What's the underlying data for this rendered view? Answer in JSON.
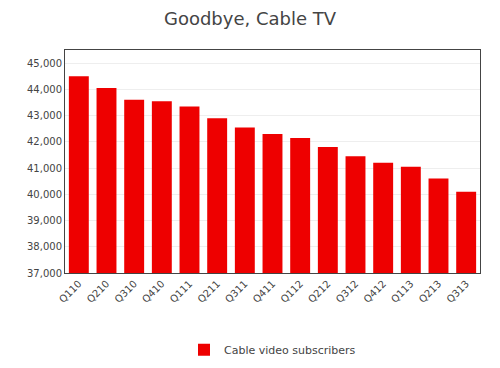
{
  "chart_data": {
    "type": "bar",
    "title": "Goodbye, Cable TV",
    "categories": [
      "Q110",
      "Q210",
      "Q310",
      "Q410",
      "Q111",
      "Q211",
      "Q311",
      "Q411",
      "Q112",
      "Q212",
      "Q312",
      "Q412",
      "Q113",
      "Q213",
      "Q313"
    ],
    "series": [
      {
        "name": "Cable video subscribers",
        "color": "#EE0000",
        "values": [
          44500,
          44050,
          43600,
          43550,
          43350,
          42900,
          42550,
          42300,
          42150,
          41800,
          41450,
          41200,
          41050,
          40600,
          40100
        ]
      }
    ],
    "ylim": [
      37000,
      45500
    ],
    "yticks": [
      {
        "value": 37000,
        "label": "37,000"
      },
      {
        "value": 38000,
        "label": "38,000"
      },
      {
        "value": 39000,
        "label": "39,000"
      },
      {
        "value": 40000,
        "label": "40,000"
      },
      {
        "value": 41000,
        "label": "41,000"
      },
      {
        "value": 42000,
        "label": "42,000"
      },
      {
        "value": 43000,
        "label": "43,000"
      },
      {
        "value": 44000,
        "label": "44,000"
      },
      {
        "value": 45000,
        "label": "45,000"
      }
    ],
    "grid": true,
    "legend": "bottom"
  }
}
